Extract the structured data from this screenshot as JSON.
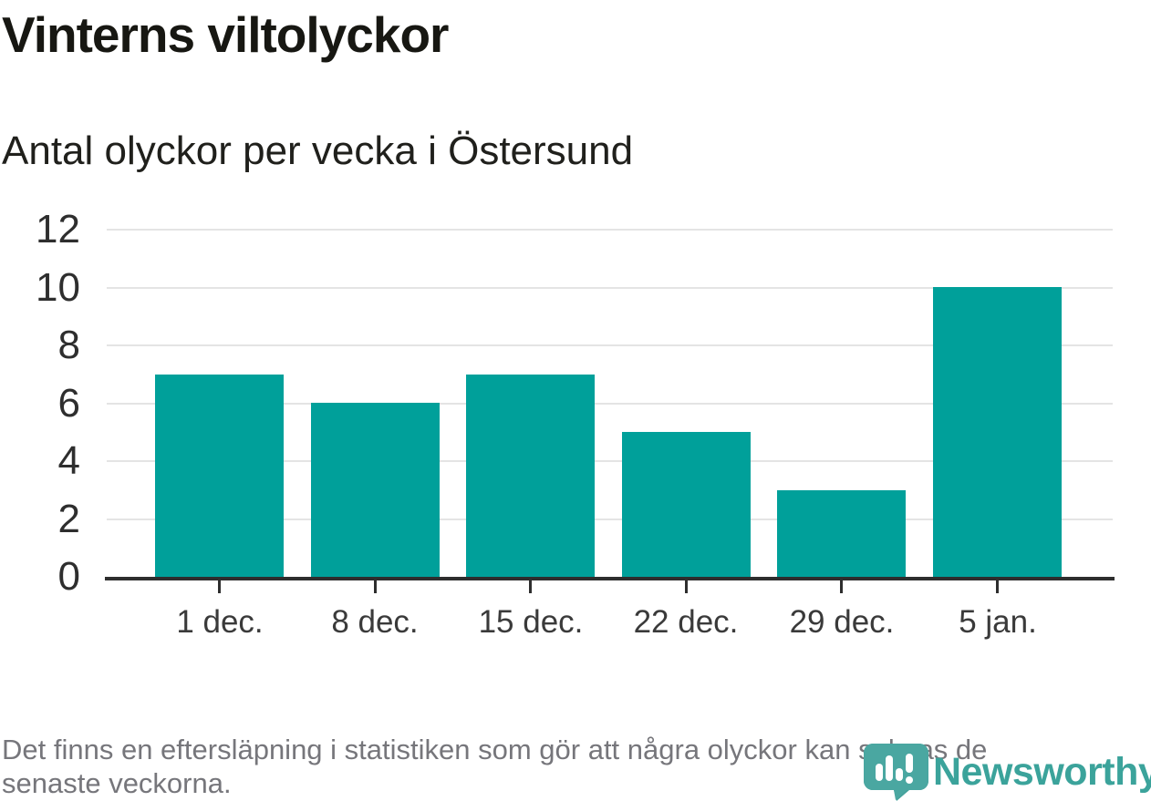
{
  "title": "Vinterns viltolyckor",
  "subtitle": "Antal olyckor per vecka i Östersund",
  "footer": {
    "lines": [
      "Det finns en eftersläpning i statistiken som gör att några olyckor kan saknas de",
      "senaste veckorna."
    ]
  },
  "logo": {
    "name": "Newsworthy",
    "icon": "newsworthy-speech-bubble-barchart-icon"
  },
  "colors": {
    "bar": "#00a09a",
    "axis": "#2e2e2e",
    "grid": "#e4e4e4",
    "logo_teal": "#3ba39b",
    "footer_gray": "#76767b",
    "title_black": "#171712"
  },
  "chart_data": {
    "type": "bar",
    "title": "Vinterns viltolyckor",
    "subtitle": "Antal olyckor per vecka i Östersund",
    "categories": [
      "1 dec.",
      "8 dec.",
      "15 dec.",
      "22 dec.",
      "29 dec.",
      "5 jan."
    ],
    "values": [
      7,
      6,
      7,
      5,
      3,
      10
    ],
    "xlabel": "",
    "ylabel": "",
    "ylim": [
      0,
      12
    ],
    "yticks": [
      0,
      2,
      4,
      6,
      8,
      10,
      12
    ],
    "grid": "horizontal-only",
    "legend": "none",
    "bar_color": "#00a09a"
  }
}
